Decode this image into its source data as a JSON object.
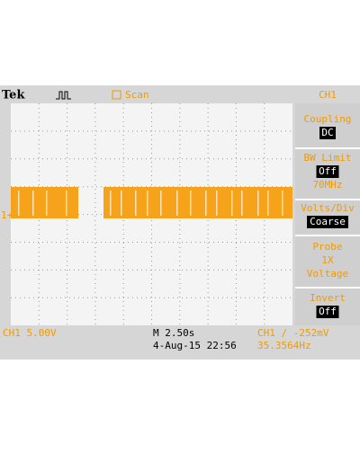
{
  "header": {
    "brand": "Tek",
    "mode": "Scan",
    "channel": "CH1"
  },
  "menu": [
    {
      "title": "Coupling",
      "setting": "DC"
    },
    {
      "title": "BW Limit",
      "setting": "Off",
      "note": "70MHz"
    },
    {
      "title": "Volts/Div",
      "setting": "Coarse"
    },
    {
      "title": "Probe",
      "lines": [
        "1X",
        "Voltage"
      ]
    },
    {
      "title": "Invert",
      "setting": "Off"
    }
  ],
  "marker": "1+",
  "status": {
    "scale": "CH1  5.00V",
    "timebase": "M 2.50s",
    "date": "4-Aug-15 22:56",
    "trigger": "CH1 ∕ -252mV",
    "frequency": "35.3564Hz"
  }
}
